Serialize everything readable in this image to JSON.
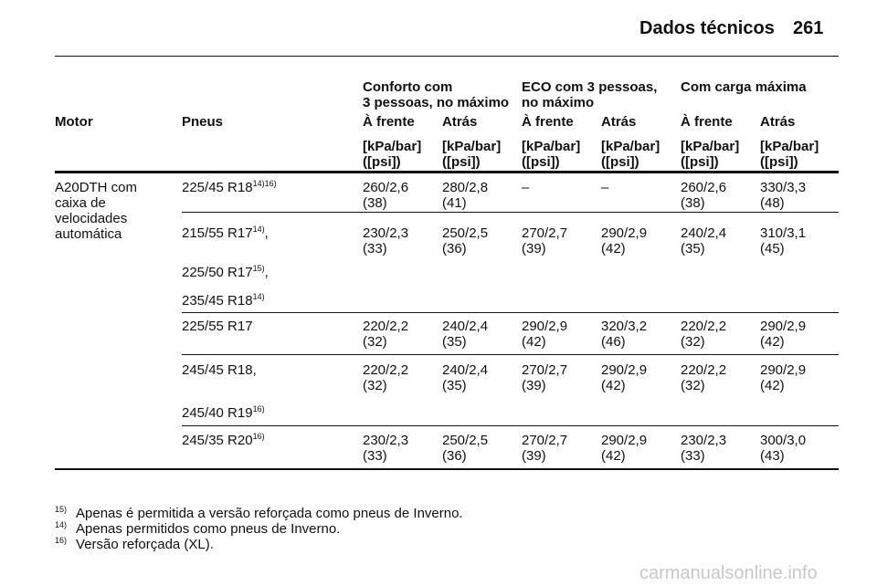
{
  "header": {
    "title": "Dados técnicos",
    "page": "261"
  },
  "table": {
    "group_headers": [
      "Conforto com\n3 pessoas, no máximo",
      "ECO com 3 pessoas,\nno máximo",
      "Com carga máxima"
    ],
    "columns": [
      "Motor",
      "Pneus",
      "À frente",
      "Atrás",
      "À frente",
      "Atrás",
      "À frente",
      "Atrás"
    ],
    "units": [
      "[kPa/bar]\n([psi])",
      "[kPa/bar]\n([psi])",
      "[kPa/bar]\n([psi])",
      "[kPa/bar]\n([psi])",
      "[kPa/bar]\n([psi])",
      "[kPa/bar]\n([psi])"
    ],
    "motor": "A20DTH com\ncaixa de\nvelocidades\nautomática",
    "rows": [
      {
        "tyres": [
          {
            "name": "225/45 R18",
            "note": "14)16)"
          }
        ],
        "values": [
          "260/2,6\n(38)",
          "280/2,8\n(41)",
          "–",
          "–",
          "260/2,6\n(38)",
          "330/3,3\n(48)"
        ]
      },
      {
        "tyres": [
          {
            "name": "215/55 R17",
            "note": "14)",
            "after": ","
          },
          {
            "name": "225/50 R17",
            "note": "15)",
            "after": ","
          },
          {
            "name": "235/45 R18",
            "note": "14)"
          }
        ],
        "values": [
          "230/2,3\n(33)",
          "250/2,5\n(36)",
          "270/2,7\n(39)",
          "290/2,9\n(42)",
          "240/2,4\n(35)",
          "310/3,1\n(45)"
        ]
      },
      {
        "tyres": [
          {
            "name": "225/55 R17"
          }
        ],
        "values": [
          "220/2,2\n(32)",
          "240/2,4\n(35)",
          "290/2,9\n(42)",
          "320/3,2\n(46)",
          "220/2,2\n(32)",
          "290/2,9\n(42)"
        ]
      },
      {
        "tyres": [
          {
            "name": "245/45 R18,"
          },
          {
            "name": "245/40 R19",
            "note": "16)"
          }
        ],
        "values": [
          "220/2,2\n(32)",
          "240/2,4\n(35)",
          "270/2,7\n(39)",
          "290/2,9\n(42)",
          "220/2,2\n(32)",
          "290/2,9\n(42)"
        ]
      },
      {
        "tyres": [
          {
            "name": "245/35 R20",
            "note": "16)"
          }
        ],
        "values": [
          "230/2,3\n(33)",
          "250/2,5\n(36)",
          "270/2,7\n(39)",
          "290/2,9\n(42)",
          "230/2,3\n(33)",
          "300/3,0\n(43)"
        ]
      }
    ]
  },
  "footnotes": [
    {
      "mark": "15)",
      "text": "Apenas é permitida a versão reforçada como pneus de Inverno."
    },
    {
      "mark": "14)",
      "text": "Apenas permitidos como pneus de Inverno."
    },
    {
      "mark": "16)",
      "text": "Versão reforçada (XL)."
    }
  ],
  "watermark": "carmanualsonline.info"
}
